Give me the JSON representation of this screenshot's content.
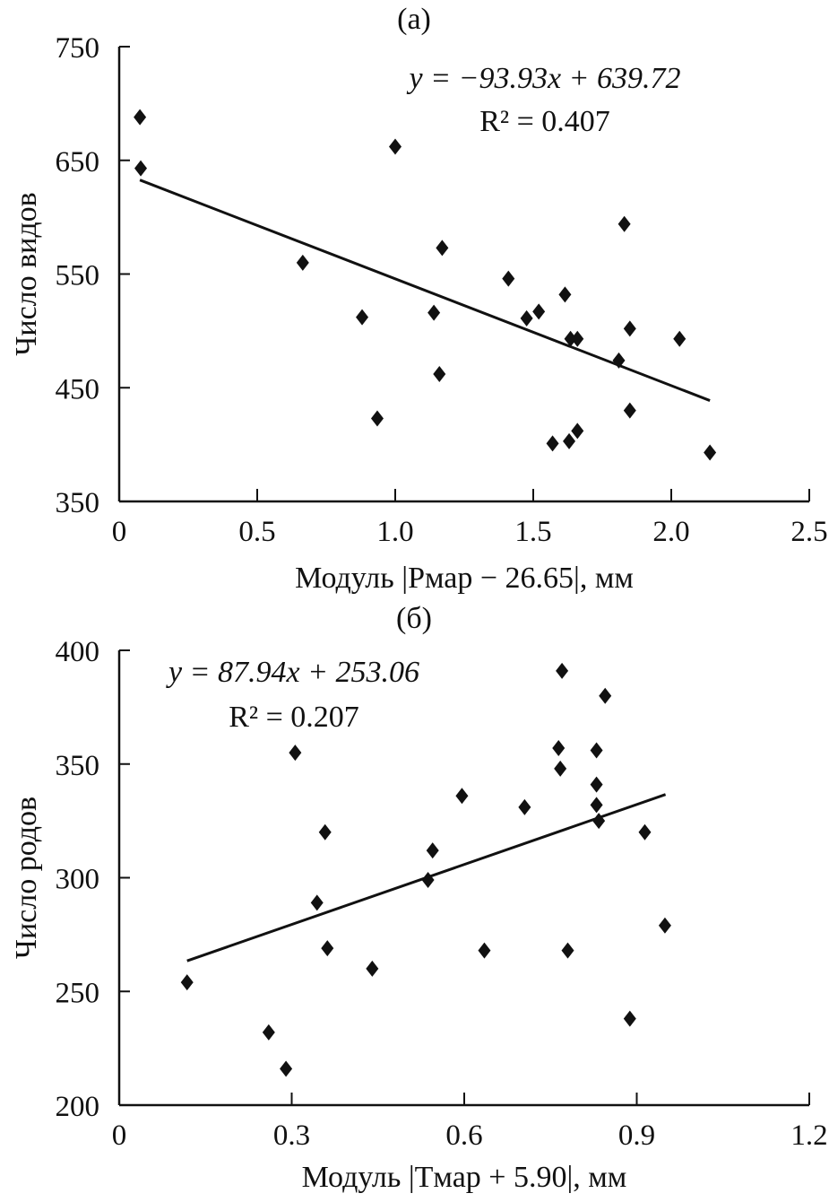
{
  "chart_data": [
    {
      "type": "scatter",
      "title": "(a)",
      "xlabel": "Модуль |Pмар − 26.65|, мм",
      "ylabel": "Число видов",
      "xlim": [
        0,
        2.5
      ],
      "ylim": [
        350,
        750
      ],
      "xticks": [
        "0",
        "0.5",
        "1.0",
        "1.5",
        "2.0",
        "2.5"
      ],
      "yticks": [
        "350",
        "450",
        "550",
        "650",
        "750"
      ],
      "equation": "y = −93.93x + 639.72",
      "r2": "R² = 0.407",
      "trend": {
        "slope": -93.93,
        "intercept": 639.72,
        "x_range": [
          0.075,
          2.14
        ]
      },
      "points": [
        [
          0.075,
          688
        ],
        [
          0.078,
          643
        ],
        [
          1.0,
          662
        ],
        [
          0.665,
          560
        ],
        [
          0.88,
          512
        ],
        [
          0.935,
          423
        ],
        [
          1.17,
          573
        ],
        [
          1.16,
          462
        ],
        [
          1.14,
          516
        ],
        [
          1.41,
          546
        ],
        [
          1.476,
          511
        ],
        [
          1.52,
          517
        ],
        [
          1.615,
          532
        ],
        [
          1.635,
          493
        ],
        [
          1.66,
          493
        ],
        [
          1.57,
          401
        ],
        [
          1.63,
          403
        ],
        [
          1.66,
          412
        ],
        [
          1.83,
          594
        ],
        [
          1.85,
          502
        ],
        [
          1.81,
          474
        ],
        [
          1.85,
          430
        ],
        [
          2.03,
          493
        ],
        [
          2.14,
          393
        ]
      ]
    },
    {
      "type": "scatter",
      "title": "(б)",
      "xlabel": "Модуль |Tмар + 5.90|, мм",
      "ylabel": "Число родов",
      "xlim": [
        0,
        1.2
      ],
      "ylim": [
        200,
        400
      ],
      "xticks": [
        "0",
        "0.3",
        "0.6",
        "0.9",
        "1.2"
      ],
      "yticks": [
        "200",
        "250",
        "300",
        "350",
        "400"
      ],
      "equation": "y = 87.94x + 253.06",
      "r2": "R² = 0.207",
      "trend": {
        "slope": 87.94,
        "intercept": 253.06,
        "x_range": [
          0.118,
          0.95
        ]
      },
      "points": [
        [
          0.118,
          254
        ],
        [
          0.26,
          232
        ],
        [
          0.29,
          216
        ],
        [
          0.306,
          355
        ],
        [
          0.358,
          320
        ],
        [
          0.344,
          289
        ],
        [
          0.362,
          269
        ],
        [
          0.44,
          260
        ],
        [
          0.537,
          299
        ],
        [
          0.545,
          312
        ],
        [
          0.596,
          336
        ],
        [
          0.635,
          268
        ],
        [
          0.705,
          331
        ],
        [
          0.764,
          357
        ],
        [
          0.77,
          391
        ],
        [
          0.767,
          348
        ],
        [
          0.78,
          268
        ],
        [
          0.83,
          356
        ],
        [
          0.83,
          341
        ],
        [
          0.83,
          332
        ],
        [
          0.834,
          325
        ],
        [
          0.845,
          380
        ],
        [
          0.888,
          238
        ],
        [
          0.914,
          320
        ],
        [
          0.949,
          279
        ]
      ]
    }
  ]
}
